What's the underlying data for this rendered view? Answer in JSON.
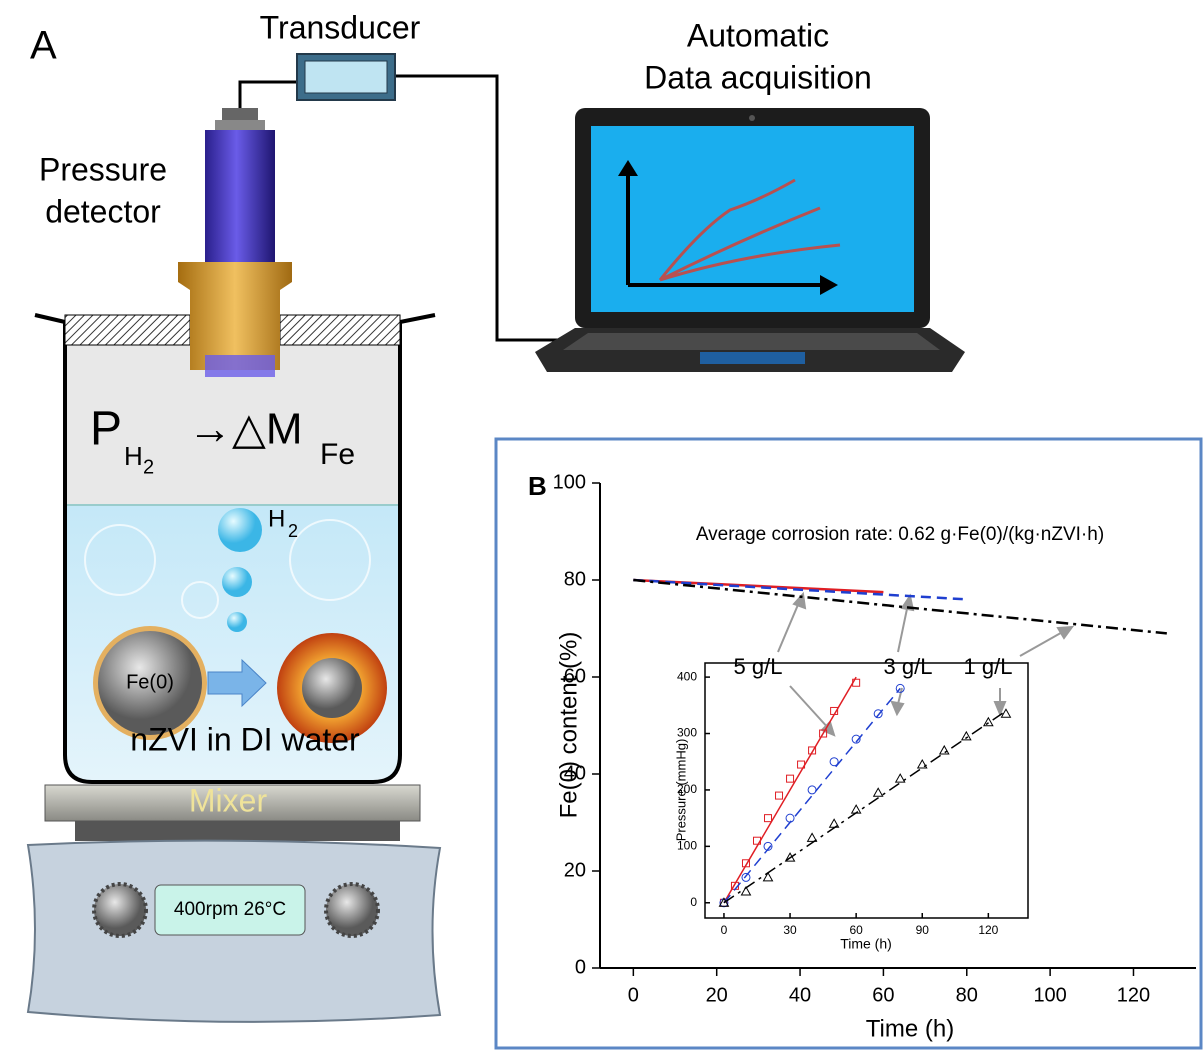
{
  "panel_a": {
    "label": "A",
    "transducer": "Transducer",
    "acquisition_line1": "Automatic",
    "acquisition_line2": "Data acquisition",
    "detector_line1": "Pressure",
    "detector_line2": "detector",
    "formula": {
      "p": "P",
      "h": "H",
      "two": "2",
      "arrow": "→△M",
      "fe": "Fe"
    },
    "bubble_h": "H",
    "bubble_two": "2",
    "particle": "Fe(0)",
    "medium": "nZVI in DI water",
    "mixer": "Mixer",
    "display": "400rpm 26°C"
  },
  "chart_data": [
    {
      "type": "line",
      "panel_label": "B",
      "annotation": "Average corrosion rate: 0.62 g·Fe(0)/(kg·nZVI·h)",
      "x_label": "Time (h)",
      "y_label": "Fe(0) content (%)",
      "xlim": [
        -8,
        135
      ],
      "ylim": [
        0,
        100
      ],
      "xticks": [
        0,
        20,
        40,
        60,
        80,
        100,
        120
      ],
      "yticks": [
        0,
        20,
        40,
        60,
        80,
        100
      ],
      "series": [
        {
          "name": "5 g/L",
          "color": "#e01e24",
          "line_style": "solid",
          "x": [
            0,
            60
          ],
          "values": [
            80,
            77.5
          ]
        },
        {
          "name": "3 g/L",
          "color": "#1f3fd0",
          "line_style": "dashed",
          "x": [
            0,
            80
          ],
          "values": [
            80,
            76
          ]
        },
        {
          "name": "1 g/L",
          "color": "#000000",
          "line_style": "dashdot",
          "x": [
            0,
            128
          ],
          "values": [
            80,
            69
          ]
        }
      ]
    },
    {
      "type": "scatter",
      "x_label": "Time (h)",
      "y_label": "Pressure (mmHg)",
      "xlim": [
        -8.6,
        138
      ],
      "ylim": [
        -27,
        425
      ],
      "xticks": [
        0,
        30,
        60,
        90,
        120
      ],
      "yticks": [
        0,
        100,
        200,
        300,
        400
      ],
      "series": [
        {
          "color": "#e01e24",
          "marker": "square",
          "line_style": "solid",
          "x": [
            0,
            5,
            10,
            15,
            20,
            25,
            30,
            35,
            40,
            45,
            50,
            60
          ],
          "values": [
            0,
            30,
            70,
            110,
            150,
            190,
            220,
            245,
            270,
            300,
            340,
            390
          ],
          "fit_x": [
            0,
            60
          ],
          "fit_values": [
            0,
            400
          ]
        },
        {
          "color": "#1f3fd0",
          "marker": "circle",
          "line_style": "dashed",
          "x": [
            0,
            10,
            20,
            30,
            40,
            50,
            60,
            70,
            80
          ],
          "values": [
            0,
            45,
            100,
            150,
            200,
            250,
            290,
            335,
            380
          ],
          "fit_x": [
            0,
            80
          ],
          "fit_values": [
            0,
            380
          ]
        },
        {
          "color": "#000000",
          "marker": "triangle",
          "line_style": "dashdot",
          "x": [
            0,
            10,
            20,
            30,
            40,
            50,
            60,
            70,
            80,
            90,
            100,
            110,
            120,
            128
          ],
          "values": [
            0,
            20,
            45,
            80,
            115,
            140,
            165,
            195,
            220,
            245,
            270,
            295,
            320,
            335
          ],
          "fit_x": [
            0,
            128
          ],
          "fit_values": [
            0,
            340
          ]
        }
      ]
    }
  ]
}
